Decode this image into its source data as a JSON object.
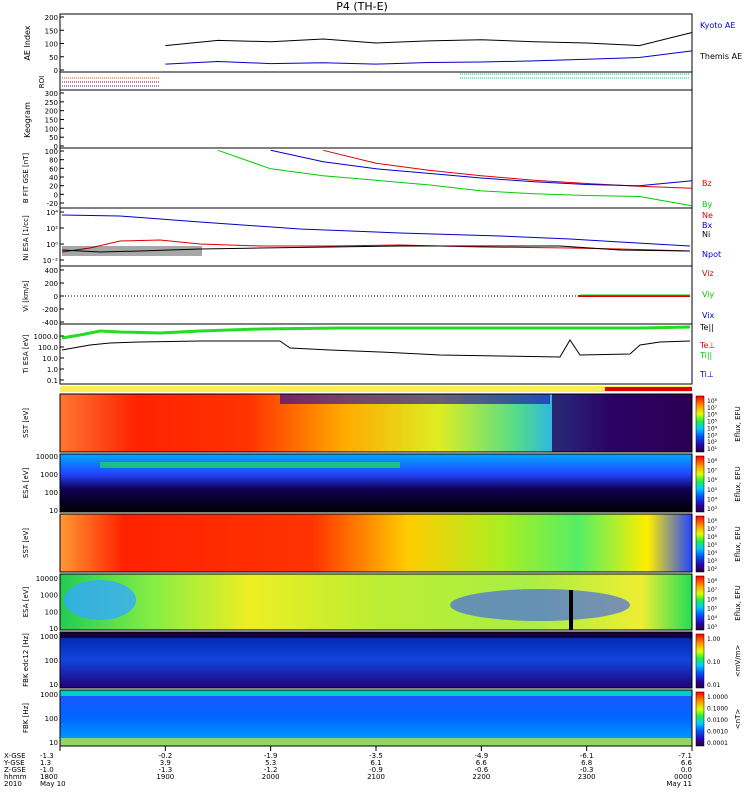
{
  "title": "P4 (TH-E)",
  "colors": {
    "kyoto": "#0000cc",
    "themis": "#000000",
    "bz": "#e00000",
    "by": "#00cc00",
    "bx": "#0000cc",
    "roi_bar": "#ffee55",
    "roi_red": "#dd0000"
  },
  "chart_data": [
    {
      "type": "line",
      "panel": "AE Index",
      "ylabel": "AE Index",
      "yticks": [
        "0",
        "50",
        "100",
        "150",
        "200"
      ],
      "ylim": [
        0,
        220
      ],
      "x": [
        19.0,
        19.5,
        20.0,
        20.5,
        21.0,
        21.5,
        22.0,
        22.5,
        23.0,
        23.5,
        24.0
      ],
      "series": [
        {
          "name": "Kyoto AE",
          "values": [
            30,
            40,
            32,
            35,
            30,
            36,
            38,
            42,
            48,
            55,
            80
          ]
        },
        {
          "name": "Themis AE",
          "values": [
            100,
            120,
            115,
            125,
            110,
            118,
            122,
            115,
            110,
            100,
            150
          ]
        }
      ]
    },
    {
      "type": "bar",
      "panel": "ROI",
      "ylabel": "ROI"
    },
    {
      "type": "heatmap",
      "panel": "Keogram",
      "ylabel": "Keogram",
      "yticks": [
        "0",
        "50",
        "100",
        "150",
        "200",
        "250",
        "300"
      ]
    },
    {
      "type": "line",
      "panel": "B_FIT",
      "ylabel": "B FIT GSE [nT]",
      "yticks": [
        "-20",
        "0",
        "20",
        "40",
        "60",
        "80",
        "100"
      ],
      "ylim": [
        -25,
        105
      ],
      "x": [
        19.0,
        19.5,
        20.0,
        20.5,
        21.0,
        21.5,
        22.0,
        22.5,
        23.0,
        23.5,
        24.0
      ],
      "series": [
        {
          "name": "Bz",
          "values": [
            null,
            null,
            null,
            100,
            72,
            57,
            45,
            35,
            28,
            22,
            18
          ]
        },
        {
          "name": "By",
          "values": [
            null,
            100,
            60,
            45,
            35,
            25,
            12,
            6,
            2,
            0,
            -20
          ]
        },
        {
          "name": "Bx",
          "values": [
            null,
            null,
            100,
            75,
            60,
            50,
            40,
            32,
            26,
            23,
            34
          ]
        }
      ]
    },
    {
      "type": "line",
      "panel": "Density",
      "ylabel": "Ni ESA [1/cc]",
      "yticks": [
        "10⁴",
        "10²",
        "10⁰",
        "10⁻²"
      ],
      "series": [
        {
          "name": "Ne"
        },
        {
          "name": "Ni"
        },
        {
          "name": "Npot"
        }
      ]
    },
    {
      "type": "line",
      "panel": "Velocity",
      "ylabel": "Vi [km/s]",
      "yticks": [
        "400",
        "200",
        "0",
        "-200",
        "-400"
      ],
      "series": [
        {
          "name": "Viz"
        },
        {
          "name": "Viy"
        },
        {
          "name": "Vix"
        }
      ]
    },
    {
      "type": "line",
      "panel": "Temperature",
      "ylabel": "Ti ESA [eV]",
      "yticks": [
        "1000.0",
        "100.0",
        "10.0",
        "1.0",
        "0.1"
      ],
      "series": [
        {
          "name": "Te||"
        },
        {
          "name": "Te⊥"
        },
        {
          "name": "Ti||"
        },
        {
          "name": "Ti⊥"
        }
      ]
    },
    {
      "type": "heatmap",
      "panel": "SST electron",
      "ylabel": "SST [eV]",
      "colorbar_label": "Eflux, EFU",
      "colorbar_ticks": [
        "10⁸",
        "10⁷",
        "10⁶",
        "10⁵",
        "10⁴",
        "10³",
        "10²",
        "10¹"
      ]
    },
    {
      "type": "heatmap",
      "panel": "ESA electron",
      "ylabel": "ESA [eV]",
      "yticks": [
        "10000",
        "1000",
        "100",
        "10"
      ],
      "colorbar_label": "Eflux, EFU",
      "colorbar_ticks": [
        "10⁸",
        "10⁷",
        "10⁶",
        "10⁵",
        "10⁴",
        "10³"
      ]
    },
    {
      "type": "heatmap",
      "panel": "SST ion",
      "ylabel": "SST [eV]",
      "colorbar_label": "Eflux, EFU",
      "colorbar_ticks": [
        "10⁸",
        "10⁷",
        "10⁶",
        "10⁵",
        "10⁴",
        "10³",
        "10²"
      ]
    },
    {
      "type": "heatmap",
      "panel": "ESA ion",
      "ylabel": "ESA [eV]",
      "yticks": [
        "10000",
        "1000",
        "100",
        "10"
      ],
      "colorbar_label": "Eflux, EFU",
      "colorbar_ticks": [
        "10⁸",
        "10⁷",
        "10⁶",
        "10⁵",
        "10⁴",
        "10³"
      ]
    },
    {
      "type": "heatmap",
      "panel": "FBK edc12",
      "ylabel": "FBK edc12 [Hz]",
      "yticks": [
        "1000",
        "100",
        "10"
      ],
      "colorbar_label": "<mV/m>",
      "colorbar_ticks": [
        "1.00",
        "0.10",
        "0.01"
      ]
    },
    {
      "type": "heatmap",
      "panel": "FBK scm1",
      "ylabel": "FBK [Hz]",
      "yticks": [
        "1000",
        "100",
        "10"
      ],
      "colorbar_label": "<nT>",
      "colorbar_ticks": [
        "1.0000",
        "0.1000",
        "0.0100",
        "0.0010",
        "0.0001"
      ]
    }
  ],
  "xaxis": {
    "row_labels": [
      "X-GSE",
      "Y-GSE",
      "Z-GSE",
      "hhmm",
      "2010"
    ],
    "ticks": [
      {
        "x": "-1.3",
        "y": "1.3",
        "z": "-1.0",
        "hhmm": "1800",
        "date": "May 10"
      },
      {
        "x": "-0.2",
        "y": "3.9",
        "z": "-1.3",
        "hhmm": "1900",
        "date": ""
      },
      {
        "x": "-1.9",
        "y": "5.3",
        "z": "-1.2",
        "hhmm": "2000",
        "date": ""
      },
      {
        "x": "-3.5",
        "y": "6.1",
        "z": "-0.9",
        "hhmm": "2100",
        "date": ""
      },
      {
        "x": "-4.9",
        "y": "6.6",
        "z": "-0.6",
        "hhmm": "2200",
        "date": ""
      },
      {
        "x": "-6.1",
        "y": "6.8",
        "z": "-0.3",
        "hhmm": "2300",
        "date": ""
      },
      {
        "x": "-7.1",
        "y": "6.6",
        "z": "0.0",
        "hhmm": "0000",
        "date": "May 11"
      }
    ]
  }
}
